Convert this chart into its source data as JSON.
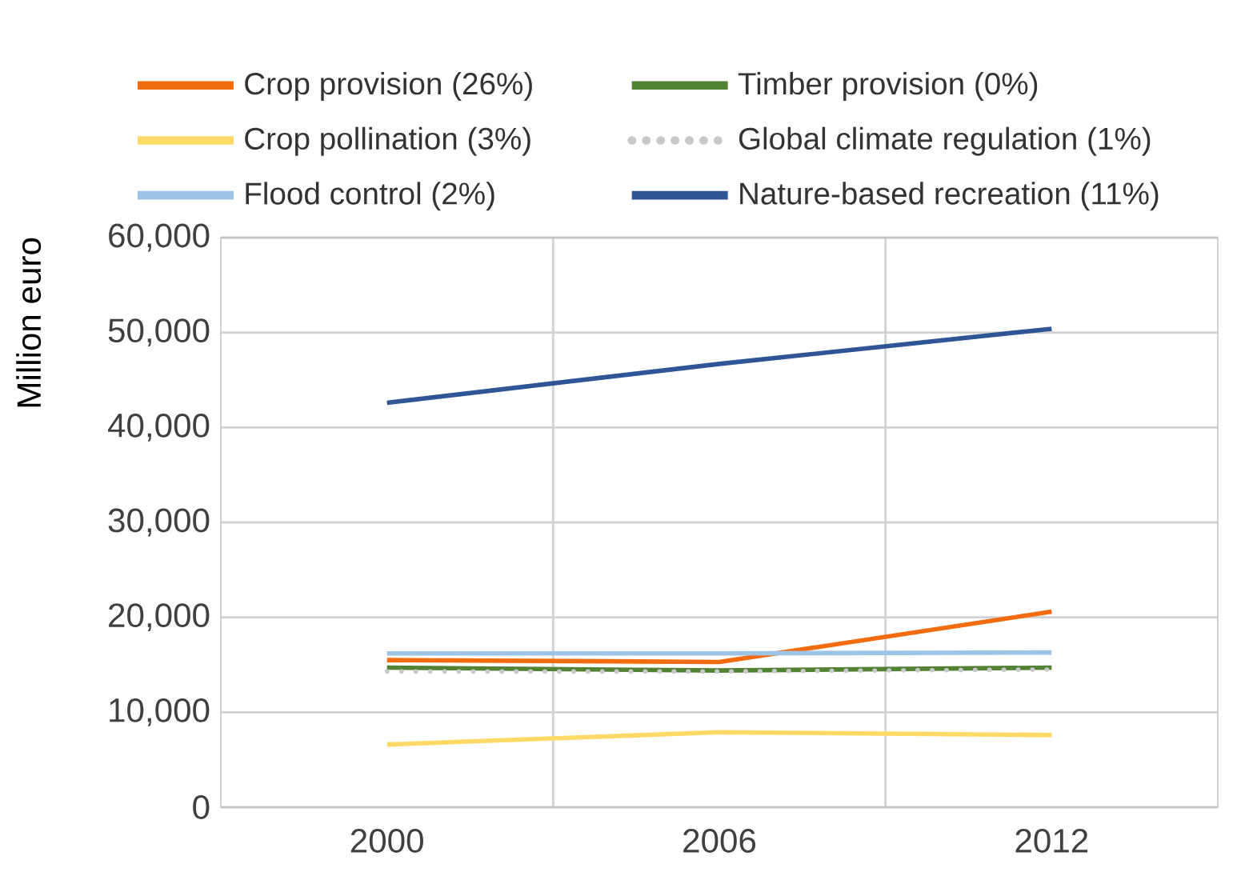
{
  "chart_data": {
    "type": "line",
    "ylabel": "Million euro",
    "categories": [
      "2000",
      "2006",
      "2012"
    ],
    "series": [
      {
        "name": "Crop provision (26%)",
        "color": "#f26b0f",
        "values": [
          15500,
          15300,
          20600
        ]
      },
      {
        "name": "Timber provision (0%)",
        "color": "#548235",
        "values": [
          14700,
          14400,
          14700
        ]
      },
      {
        "name": "Crop pollination (3%)",
        "color": "#ffd966",
        "values": [
          6600,
          7900,
          7600
        ]
      },
      {
        "name": "Global climate regulation (1%)",
        "color": "#c8c8c8",
        "line_style": "dotted",
        "values": [
          14300,
          14300,
          14500
        ]
      },
      {
        "name": "Flood control (2%)",
        "color": "#9dc3e6",
        "values": [
          16200,
          16200,
          16300
        ]
      },
      {
        "name": "Nature-based recreation (11%)",
        "color": "#2f5597",
        "values": [
          42600,
          46700,
          50400
        ]
      }
    ],
    "ylim": [
      0,
      60000
    ],
    "yticks": [
      0,
      {
        "value": 10000,
        "label": "10,000"
      },
      {
        "value": 20000,
        "label": "20,000"
      },
      {
        "value": 30000,
        "label": "30,000"
      },
      {
        "value": 40000,
        "label": "40,000"
      },
      {
        "value": 50000,
        "label": "50,000"
      },
      {
        "value": 60000,
        "label": "60,000"
      }
    ],
    "grid": true,
    "legend": "top",
    "marker": "none",
    "line_style": "solid"
  }
}
